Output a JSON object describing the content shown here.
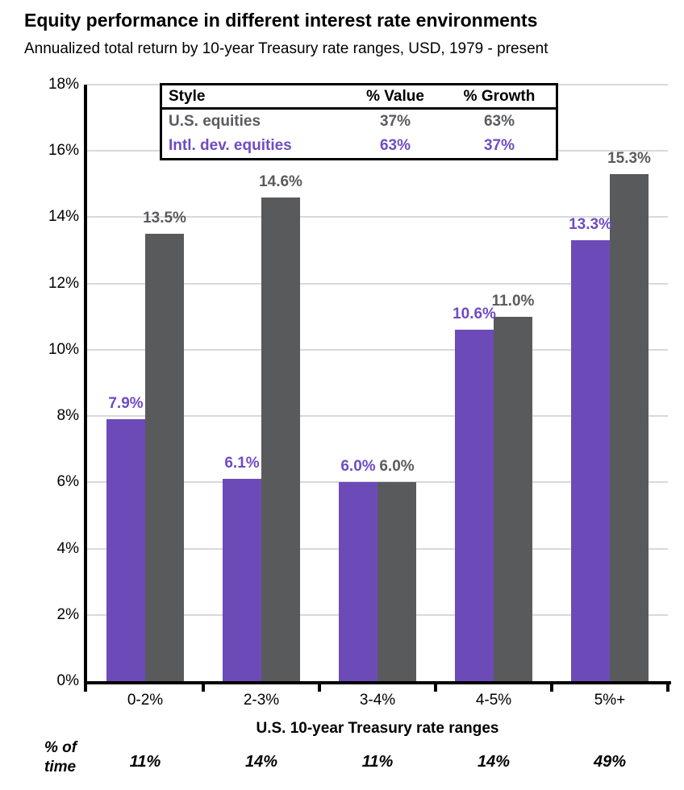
{
  "header": {
    "title": "Equity performance in different interest rate environments",
    "subtitle": "Annualized total return by 10-year Treasury rate ranges, USD, 1979 - present"
  },
  "legend_table": {
    "headers": [
      "Style",
      "% Value",
      "% Growth"
    ],
    "rows": [
      {
        "label": "U.S. equities",
        "pct_value": "37%",
        "pct_growth": "63%",
        "color": "#595b5e"
      },
      {
        "label": "Intl. dev. equities",
        "pct_value": "63%",
        "pct_growth": "37%",
        "color": "#6f4bc4"
      }
    ]
  },
  "chart_data": {
    "type": "bar",
    "title": "Equity performance in different interest rate environments",
    "subtitle": "Annualized total return by 10-year Treasury rate ranges, USD, 1979 - present",
    "categories": [
      "0-2%",
      "2-3%",
      "3-4%",
      "4-5%",
      "5%+"
    ],
    "series": [
      {
        "name": "Intl. dev. equities",
        "color": "#6c4bb8",
        "label_color": "#6f4bc4",
        "values": [
          7.9,
          6.1,
          6.0,
          10.6,
          13.3
        ],
        "labels": [
          "7.9%",
          "6.1%",
          "6.0%",
          "10.6%",
          "13.3%"
        ]
      },
      {
        "name": "U.S. equities",
        "color": "#595a5c",
        "label_color": "#595b5e",
        "values": [
          13.5,
          14.6,
          6.0,
          11.0,
          15.3
        ],
        "labels": [
          "13.5%",
          "14.6%",
          "6.0%",
          "11.0%",
          "15.3%"
        ]
      }
    ],
    "xlabel": "U.S. 10-year Treasury rate ranges",
    "ylabel": "",
    "ylim": [
      0,
      18
    ],
    "ytick_step": 2,
    "ytick_labels": [
      "0%",
      "2%",
      "4%",
      "6%",
      "8%",
      "10%",
      "12%",
      "14%",
      "16%",
      "18%"
    ],
    "grid": true,
    "legend_position": "top-inside"
  },
  "footer": {
    "row_label_line1": "% of",
    "row_label_line2": "time",
    "values": [
      "11%",
      "14%",
      "11%",
      "14%",
      "49%"
    ]
  },
  "colors": {
    "purple": "#6c4bb8",
    "gray": "#595a5c",
    "gridline": "#d9d9d9",
    "axis": "#000000",
    "background": "#ffffff"
  }
}
